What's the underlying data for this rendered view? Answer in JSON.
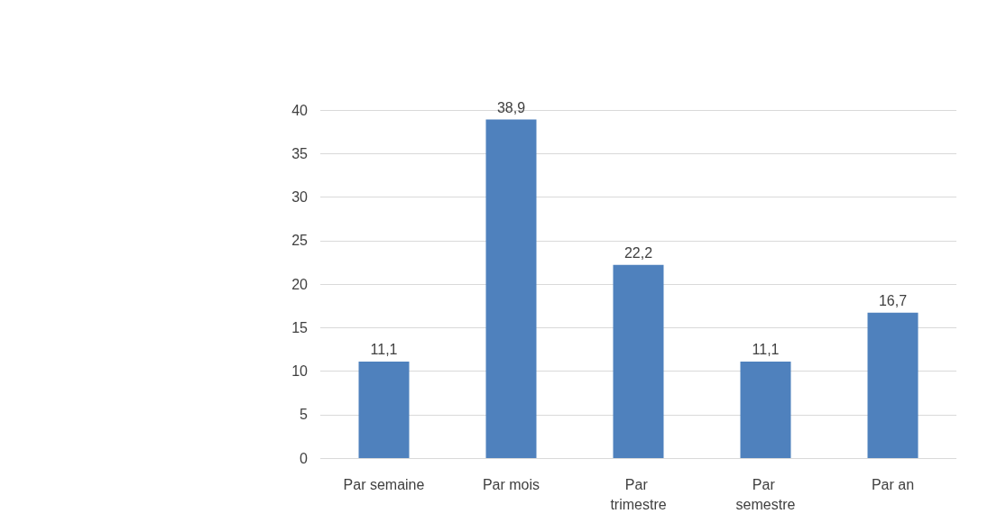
{
  "chart_data": {
    "type": "bar",
    "categories": [
      "Par semaine",
      "Par mois",
      "Par trimestre",
      "Par semestre",
      "Par an"
    ],
    "values": [
      11.1,
      38.9,
      22.2,
      11.1,
      16.7
    ],
    "value_labels": [
      "11,1",
      "38,9",
      "22,2",
      "11,1",
      "16,7"
    ],
    "color": "#4f81bd",
    "ylim": [
      0,
      40
    ],
    "yticks": [
      0,
      5,
      10,
      15,
      20,
      25,
      30,
      35,
      40
    ],
    "grid": "y"
  }
}
